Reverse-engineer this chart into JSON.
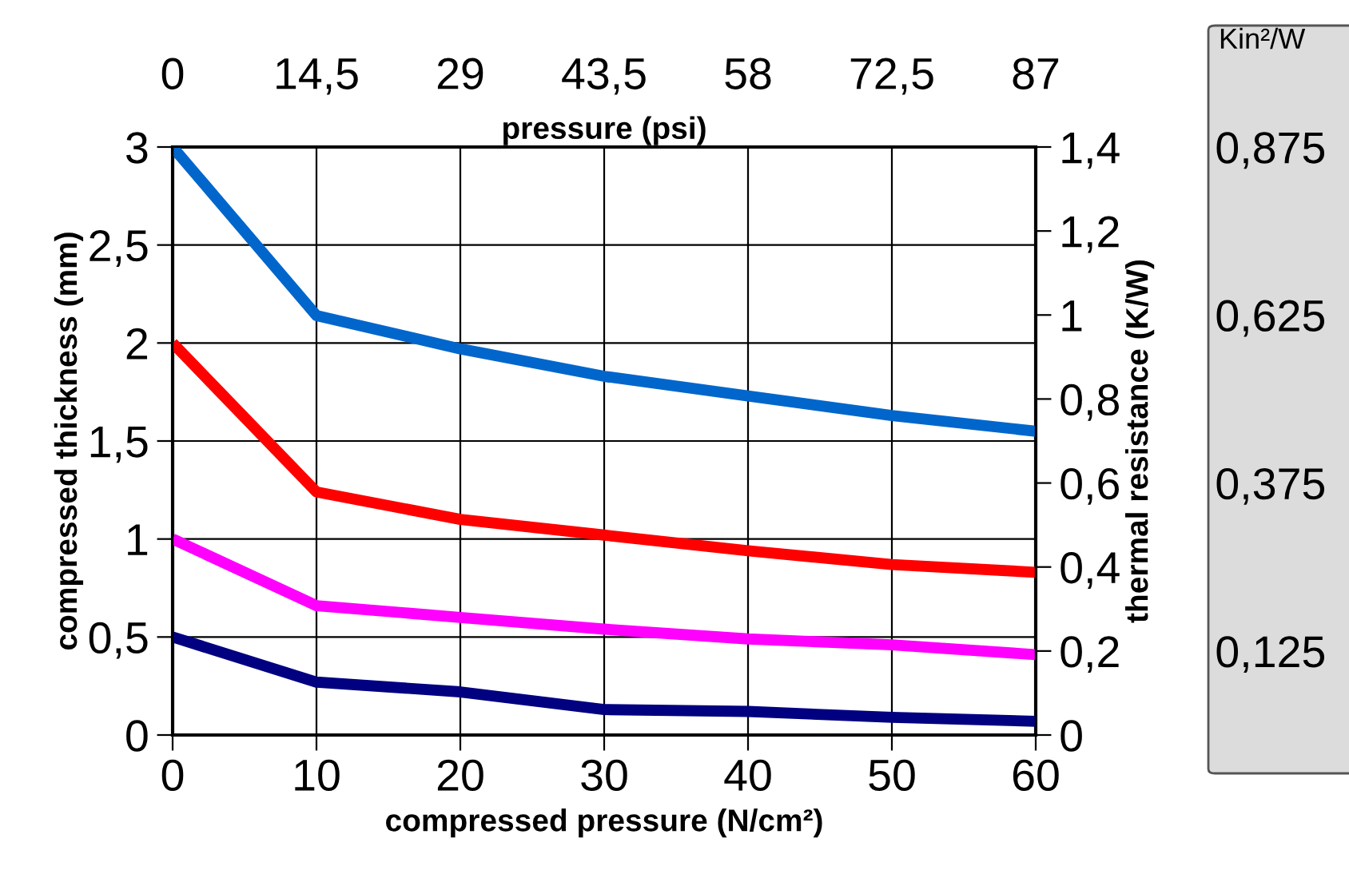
{
  "chart_data": {
    "type": "line",
    "xlabel": "compressed pressure (N/cm²)",
    "ylabel": "compressed thickness (mm)",
    "y2label": "thermal resistance (K/W)",
    "x2label": "pressure (psi)",
    "y3label": "Kin²/W",
    "x": [
      0,
      10,
      20,
      30,
      40,
      50,
      60
    ],
    "xlim": [
      0,
      60
    ],
    "xticks": [
      0,
      10,
      20,
      30,
      40,
      50,
      60
    ],
    "x2lim": [
      0,
      87
    ],
    "x2ticks": [
      0,
      {
        "value": 14.5,
        "label": "14,5"
      },
      29,
      {
        "value": 43.5,
        "label": "43,5"
      },
      58,
      {
        "value": 72.5,
        "label": "72,5"
      },
      87
    ],
    "ylim": [
      0,
      3
    ],
    "yticks": [
      0,
      {
        "value": 0.5,
        "label": "0,5"
      },
      1,
      {
        "value": 1.5,
        "label": "1,5"
      },
      2,
      {
        "value": 2.5,
        "label": "2,5"
      },
      3
    ],
    "y2lim": [
      0,
      1.4
    ],
    "y2ticks": [
      0,
      {
        "value": 0.2,
        "label": "0,2"
      },
      {
        "value": 0.4,
        "label": "0,4"
      },
      {
        "value": 0.6,
        "label": "0,6"
      },
      {
        "value": 0.8,
        "label": "0,8"
      },
      1,
      {
        "value": 1.2,
        "label": "1,2"
      },
      {
        "value": 1.4,
        "label": "1,4"
      }
    ],
    "y3lim": [
      0,
      0.875
    ],
    "y3ticks": [
      {
        "value": 0.125,
        "label": "0,125"
      },
      {
        "value": 0.375,
        "label": "0,375"
      },
      {
        "value": 0.625,
        "label": "0,625"
      },
      {
        "value": 0.875,
        "label": "0,875"
      }
    ],
    "grid": true,
    "legend": false,
    "marker": "none",
    "line_style": "solid",
    "series": [
      {
        "color": "#0066cc",
        "values": [
          3,
          2.14,
          1.97,
          1.83,
          1.73,
          1.63,
          1.55
        ]
      },
      {
        "color": "#ff0000",
        "values": [
          2,
          1.24,
          1.1,
          1.02,
          0.94,
          0.87,
          0.83
        ]
      },
      {
        "color": "#ff00ff",
        "values": [
          1,
          0.66,
          0.6,
          0.54,
          0.49,
          0.46,
          0.41
        ]
      },
      {
        "color": "#000080",
        "values": [
          0.5,
          0.27,
          0.22,
          0.13,
          0.12,
          0.09,
          0.07
        ]
      }
    ]
  }
}
